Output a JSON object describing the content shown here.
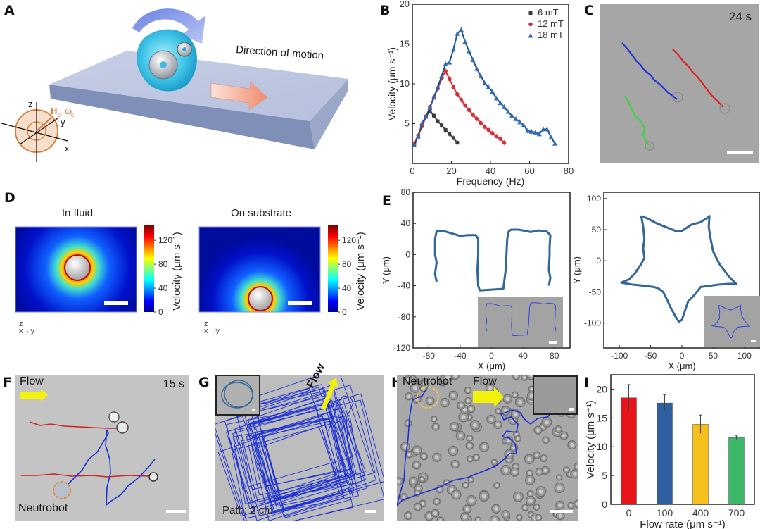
{
  "panels": {
    "A": {
      "letter": "A",
      "direction_label": "Direction of motion",
      "field_label": "H",
      "field_sub": "c",
      "omega_label": "ω",
      "omega_sub": "c",
      "axis_x": "x",
      "axis_y": "y",
      "axis_z": "z"
    },
    "B": {
      "letter": "B"
    },
    "C": {
      "letter": "C",
      "time_label": "24 s"
    },
    "D": {
      "letter": "D",
      "left_title": "In fluid",
      "right_title": "On substrate",
      "colorbar_label": "Velocity (μm s⁻¹)",
      "colorbar_ticks": [
        "0",
        "40",
        "80",
        "120"
      ],
      "colorbar_range": [
        0,
        145
      ],
      "axes_z": "z",
      "axes_xy": "x→y"
    },
    "E": {
      "letter": "E"
    },
    "F": {
      "letter": "F",
      "flow_label": "Flow",
      "time_label": "15 s",
      "robot_label": "Neutrobot"
    },
    "G": {
      "letter": "G",
      "flow_label": "Flow",
      "path_label": "Path: 2 cm"
    },
    "H": {
      "letter": "H",
      "robot_label": "Neutrobot",
      "flow_label": "Flow"
    },
    "I": {
      "letter": "I"
    }
  },
  "colors": {
    "s6": "#3a3a3a",
    "s12": "#d62e35",
    "s18": "#2f6eb5",
    "fit18": "#1f4f8a",
    "traj": "#336699",
    "track_blue": "#1a2fd6",
    "track_red": "#e02020",
    "track_green": "#3cd43c",
    "flow_arrow": "#f2f20a",
    "robot_ring": "#e08a2a"
  },
  "chart_data": [
    {
      "id": "B",
      "type": "line",
      "title": "",
      "xlabel": "Frequency (Hz)",
      "ylabel": "Velocity (μm s⁻¹)",
      "xlim": [
        0,
        80
      ],
      "ylim": [
        0,
        20
      ],
      "xticks": [
        "0",
        "20",
        "40",
        "60",
        "80"
      ],
      "yticks": [
        "5",
        "10",
        "15",
        "20"
      ],
      "legend": {
        "placement": "top-right",
        "entries": [
          "6  mT",
          "12 mT",
          "18 mT"
        ]
      },
      "series": [
        {
          "name": "6 mT",
          "marker": "square",
          "x": [
            1,
            3,
            5,
            7,
            9,
            11,
            13,
            15,
            17,
            19,
            21,
            23
          ],
          "y": [
            2.4,
            3.5,
            4.7,
            5.9,
            6.6,
            6.0,
            5.3,
            4.8,
            4.2,
            3.7,
            3.2,
            2.6
          ]
        },
        {
          "name": "12 mT",
          "marker": "circle",
          "x": [
            1,
            3,
            5,
            7,
            9,
            11,
            13,
            15,
            17,
            19,
            21,
            23,
            25,
            27,
            29,
            31,
            33,
            35,
            37,
            39,
            41,
            43,
            45,
            47
          ],
          "y": [
            2.5,
            3.5,
            4.7,
            5.9,
            7.1,
            8.3,
            9.4,
            10.7,
            11.6,
            10.6,
            9.6,
            8.7,
            8.0,
            7.3,
            6.7,
            6.1,
            5.6,
            5.1,
            4.6,
            4.2,
            3.8,
            3.4,
            3.1,
            2.6
          ]
        },
        {
          "name": "18 mT",
          "marker": "triangle",
          "x": [
            1,
            3,
            5,
            7,
            9,
            11,
            13,
            15,
            17,
            19,
            21,
            23,
            25,
            27,
            29,
            31,
            33,
            35,
            37,
            39,
            41,
            43,
            45,
            47,
            49,
            51,
            53,
            55,
            57,
            59,
            61,
            63,
            65,
            67,
            69,
            71,
            73
          ],
          "y": [
            2.3,
            3.4,
            5.1,
            5.9,
            7.0,
            8.3,
            9.6,
            11.0,
            12.5,
            12.7,
            14.3,
            16.3,
            16.8,
            15.3,
            14.1,
            13.0,
            11.9,
            11.0,
            10.1,
            9.6,
            9.0,
            8.2,
            7.6,
            7.1,
            6.5,
            6.0,
            5.6,
            5.2,
            4.8,
            4.1,
            4.0,
            3.9,
            3.7,
            4.3,
            4.3,
            3.3,
            2.5
          ]
        }
      ]
    },
    {
      "id": "E-left",
      "type": "line",
      "xlabel": "X (μm)",
      "ylabel": "Y (μm)",
      "xlim": [
        -100,
        100
      ],
      "ylim": [
        -120,
        80
      ],
      "xticks": [
        "-80",
        "-40",
        "0",
        "40",
        "80"
      ],
      "yticks": [
        "-120",
        "-80",
        "-40",
        "0",
        "40",
        "80"
      ],
      "series": [
        {
          "name": "trajectory",
          "x": [
            -70,
            -72,
            -70,
            -72,
            -72,
            -70,
            -60,
            -50,
            -40,
            -30,
            -20,
            -17,
            -17,
            -18,
            -17,
            -15,
            0,
            15,
            18,
            19,
            20,
            22,
            25,
            35,
            45,
            50,
            60,
            70,
            75,
            74,
            74,
            73,
            75,
            73
          ],
          "y": [
            -35,
            -25,
            -10,
            0,
            20,
            30,
            30,
            27,
            24,
            25,
            25,
            20,
            0,
            -20,
            -40,
            -46,
            -45,
            -44,
            -20,
            0,
            20,
            30,
            32,
            32,
            30,
            29,
            31,
            30,
            25,
            10,
            0,
            -20,
            -30,
            -40
          ]
        }
      ]
    },
    {
      "id": "E-right",
      "type": "line",
      "xlabel": "X (μm)",
      "ylabel": "Y (μm)",
      "xlim": [
        -125,
        125
      ],
      "ylim": [
        -140,
        110
      ],
      "xticks": [
        "-100",
        "-50",
        "0",
        "50",
        "100"
      ],
      "yticks": [
        "-100",
        "-50",
        "0",
        "50",
        "100"
      ],
      "series": [
        {
          "name": "trajectory",
          "x": [
            -65,
            -62,
            -60,
            -62,
            -60,
            -65,
            -75,
            -85,
            -97,
            -80,
            -60,
            -45,
            -38,
            -30,
            -25,
            -18,
            -10,
            -5,
            0,
            5,
            10,
            20,
            30,
            45,
            60,
            75,
            87,
            75,
            60,
            50,
            45,
            43,
            44,
            42,
            30,
            15,
            0,
            -10,
            -20,
            -40,
            -55,
            -65
          ],
          "y": [
            72,
            55,
            35,
            20,
            5,
            -5,
            -20,
            -30,
            -35,
            -38,
            -40,
            -42,
            -44,
            -50,
            -60,
            -75,
            -90,
            -98,
            -95,
            -80,
            -65,
            -55,
            -42,
            -40,
            -38,
            -37,
            -37,
            -25,
            -5,
            15,
            40,
            55,
            72,
            70,
            62,
            58,
            48,
            48,
            52,
            60,
            68,
            72
          ]
        }
      ]
    },
    {
      "id": "I",
      "type": "bar",
      "xlabel": "Flow rate (μm s⁻¹)",
      "ylabel": "Velocity (μm s⁻¹)",
      "ylim": [
        0,
        22.5
      ],
      "yticks": [
        "0",
        "5",
        "10",
        "15",
        "20"
      ],
      "categories": [
        "0",
        "100",
        "400",
        "700"
      ],
      "values": [
        18.5,
        17.6,
        13.9,
        11.6
      ],
      "errors": [
        2.3,
        1.4,
        1.6,
        0.3
      ],
      "bar_colors": [
        "#e8141b",
        "#2f5f9e",
        "#f7bf1b",
        "#3cb76a"
      ]
    }
  ]
}
